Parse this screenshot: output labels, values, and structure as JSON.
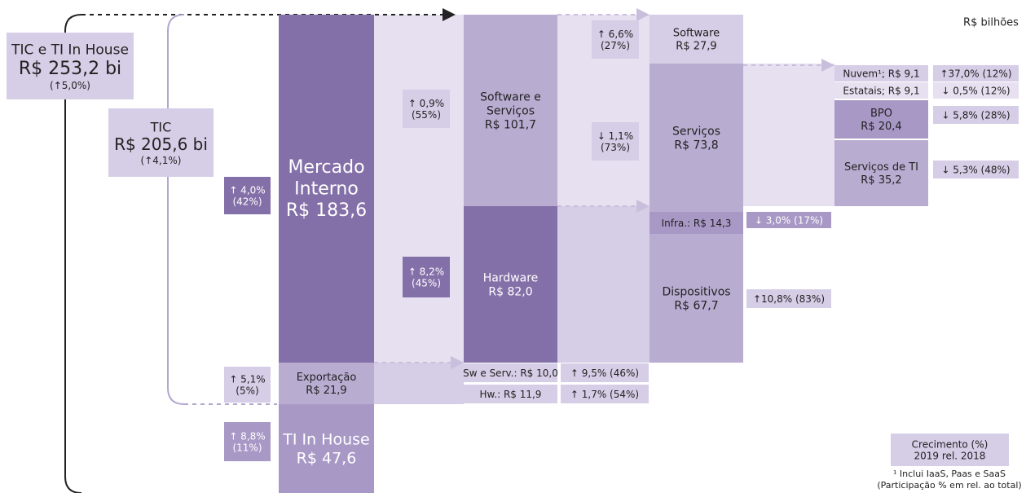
{
  "unit": "R$ bilhões",
  "nodes": [
    {
      "lines": [
        "TIC e TI In House",
        "R$ 253,2 bi",
        "(↑5,0%)"
      ]
    },
    {
      "lines": [
        "TIC",
        "R$ 205,6 bi",
        "(↑4,1%)"
      ]
    },
    {
      "lines": [
        "Mercado",
        "Interno",
        "R$ 183,6"
      ]
    },
    {
      "lines": [
        "Exportação",
        "R$ 21,9"
      ]
    },
    {
      "lines": [
        "TI In House",
        "R$ 47,6"
      ]
    },
    {
      "lines": [
        "Software e",
        "Serviços",
        "R$ 101,7"
      ]
    },
    {
      "lines": [
        "Hardware",
        "R$ 82,0"
      ]
    },
    {
      "lines": [
        "Sw e Serv.: R$ 10,0"
      ]
    },
    {
      "lines": [
        "Hw.: R$ 11,9"
      ]
    },
    {
      "lines": [
        "Software",
        "R$ 27,9"
      ]
    },
    {
      "lines": [
        "Serviços",
        "R$ 73,8"
      ]
    },
    {
      "lines": [
        "Infra.: R$ 14,3"
      ]
    },
    {
      "lines": [
        "Dispositivos",
        "R$ 67,7"
      ]
    },
    {
      "lines": [
        "Nuvem¹; R$ 9,1"
      ]
    },
    {
      "lines": [
        "Estatais; R$ 9,1"
      ]
    },
    {
      "lines": [
        "BPO",
        "R$ 20,4"
      ]
    },
    {
      "lines": [
        "Serviços de TI",
        "R$ 35,2"
      ]
    }
  ],
  "growth": [
    {
      "lines": [
        "↑ 4,0%",
        "(42%)"
      ]
    },
    {
      "lines": [
        "↑ 5,1%",
        "(5%)"
      ]
    },
    {
      "lines": [
        "↑ 8,8%",
        "(11%)"
      ]
    },
    {
      "lines": [
        "↑ 0,9%",
        "(55%)"
      ]
    },
    {
      "lines": [
        "↑ 8,2%",
        "(45%)"
      ]
    },
    {
      "lines": [
        "↑ 9,5% (46%)"
      ]
    },
    {
      "lines": [
        "↑ 1,7% (54%)"
      ]
    },
    {
      "lines": [
        "↑ 6,6%",
        "(27%)"
      ]
    },
    {
      "lines": [
        "↓ 1,1%",
        "(73%)"
      ]
    },
    {
      "lines": [
        "↓ 3,0% (17%)"
      ]
    },
    {
      "lines": [
        "↑10,8% (83%)"
      ]
    },
    {
      "lines": [
        "↑37,0% (12%)"
      ]
    },
    {
      "lines": [
        "↓ 0,5% (12%)"
      ]
    },
    {
      "lines": [
        "↓ 5,8% (28%)"
      ]
    },
    {
      "lines": [
        "↓ 5,3% (48%)"
      ]
    }
  ],
  "legend": {
    "lines": [
      "Crecimento (%)",
      "2019 rel. 2018"
    ]
  },
  "footnotes": [
    "¹ Inclui IaaS, Paas e SaaS",
    "(Participação % em rel. ao total)"
  ]
}
